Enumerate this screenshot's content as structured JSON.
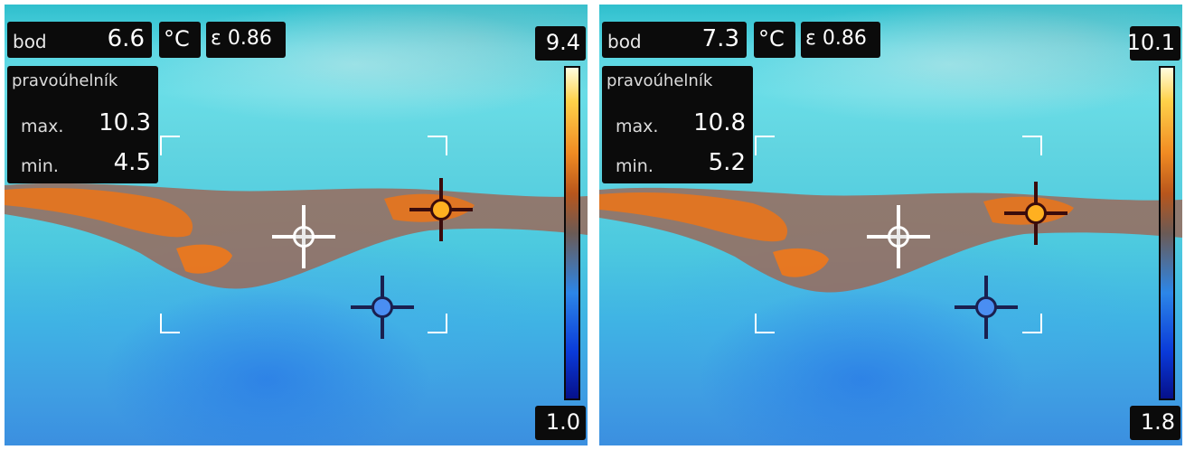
{
  "panels": [
    {
      "point_label": "bod",
      "point_value": "6.6",
      "unit": "°C",
      "emissivity": "ε 0.86",
      "rect_label": "pravoúhelník",
      "max_label": "max.",
      "max_value": "10.3",
      "min_label": "min.",
      "min_value": "4.5",
      "scale_max": "9.4",
      "scale_min": "1.0"
    },
    {
      "point_label": "bod",
      "point_value": "7.3",
      "unit": "°C",
      "emissivity": "ε 0.86",
      "rect_label": "pravoúhelník",
      "max_label": "max.",
      "max_value": "10.8",
      "min_label": "min.",
      "min_value": "5.2",
      "scale_max": "10.1",
      "scale_min": "1.8"
    }
  ],
  "colors": {
    "hot_marker": "#ffb020",
    "cold_marker": "#4a8ef2",
    "warm_band": "#e0741e",
    "cool_surface": "#4cc9df"
  },
  "icons": [
    "center-crosshair-icon",
    "hot-spot-crosshair-icon",
    "cold-spot-crosshair-icon"
  ]
}
